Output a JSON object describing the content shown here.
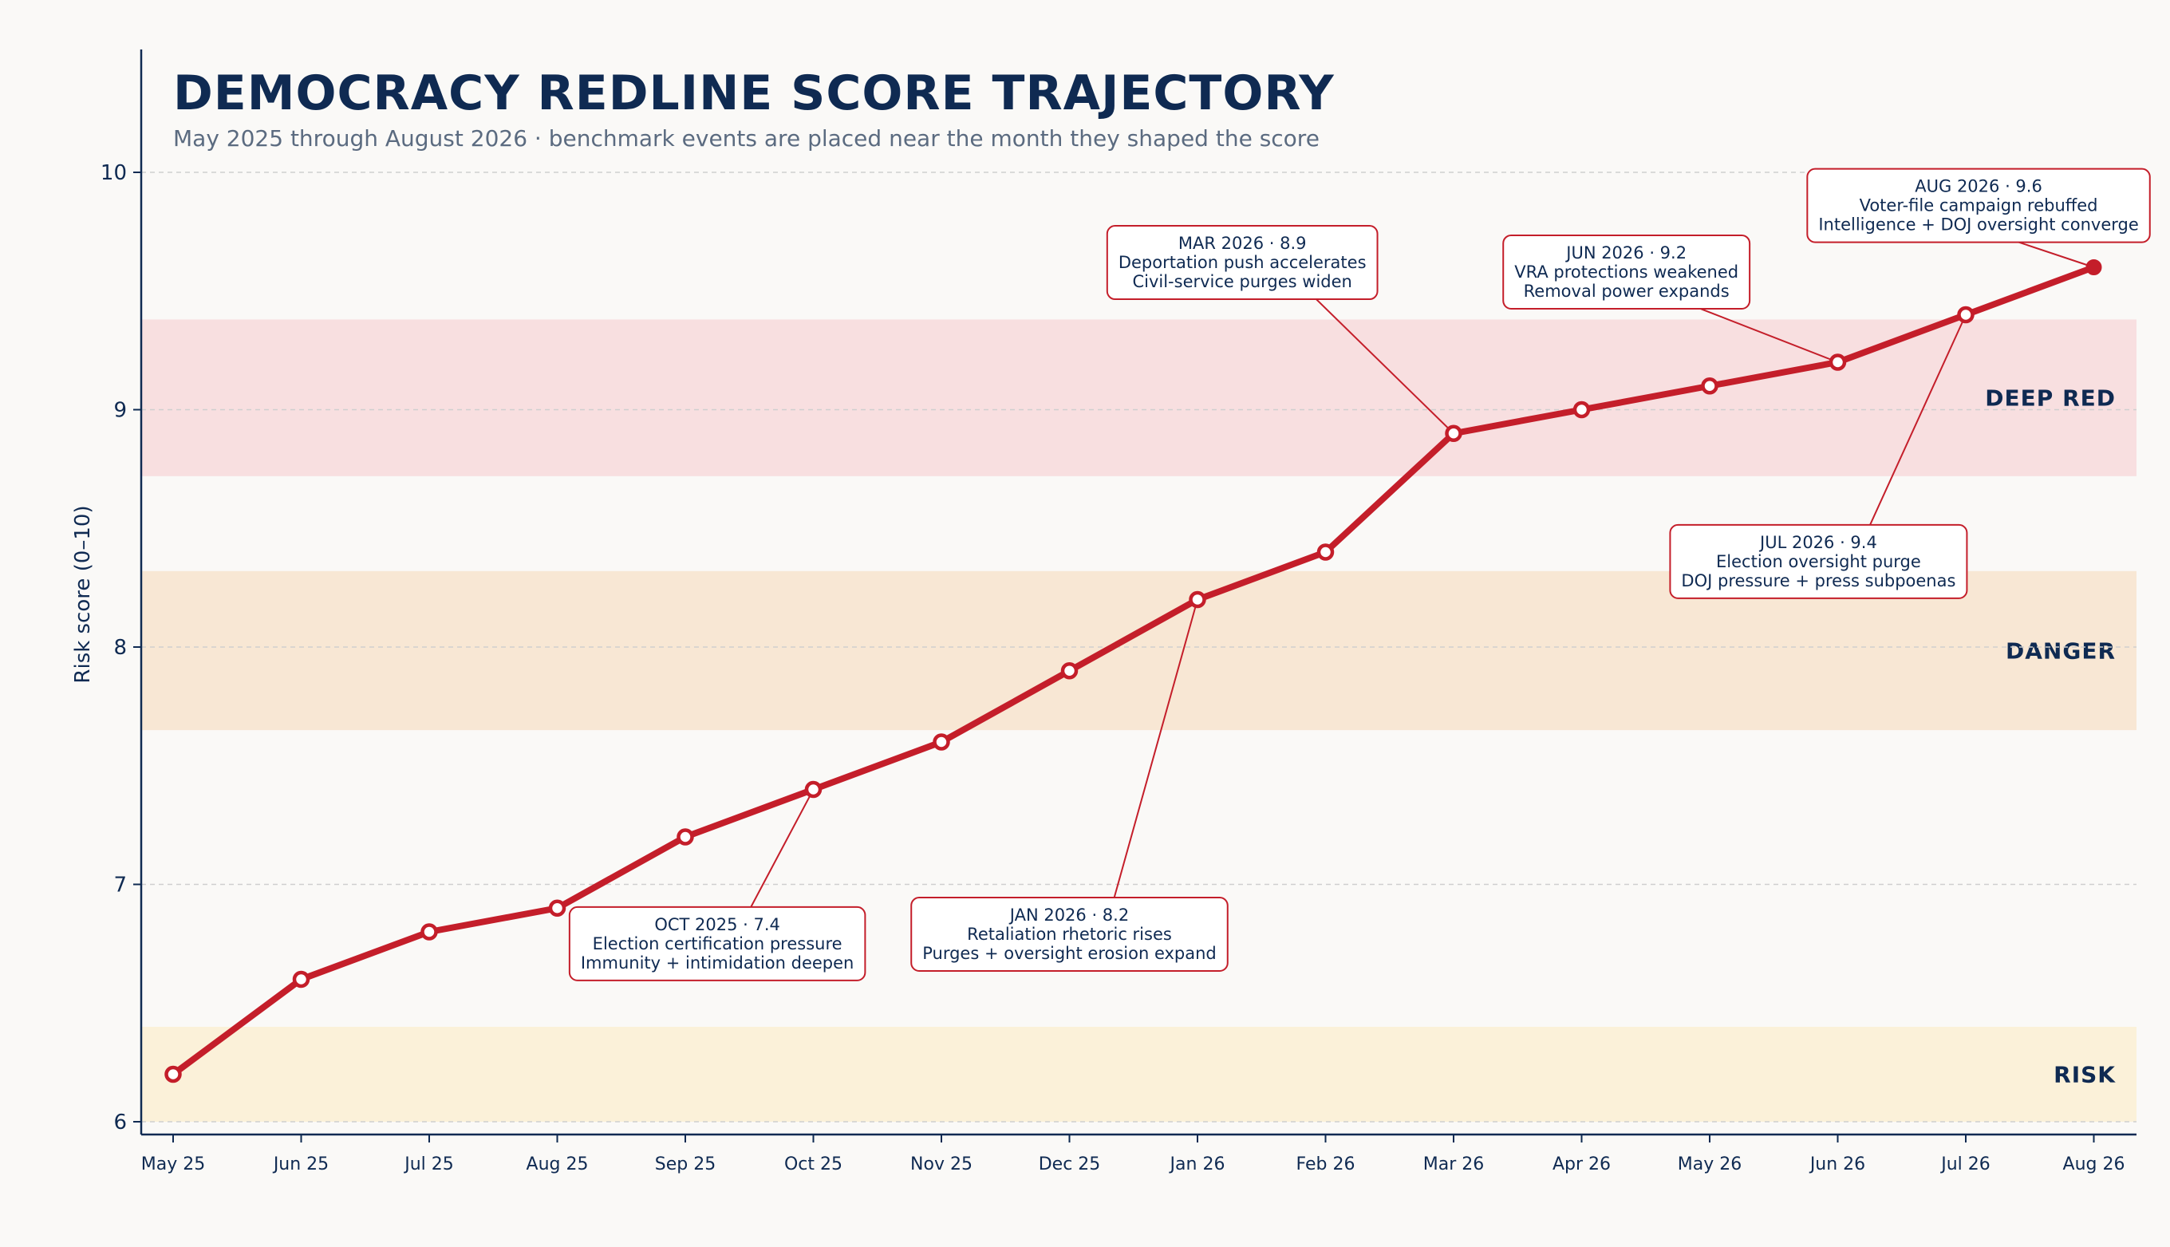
{
  "chart_data": {
    "type": "line",
    "title": "DEMOCRACY REDLINE SCORE TRAJECTORY",
    "subtitle": "May 2025 through August 2026 · benchmark events are placed near the month they shaped the score",
    "xlabel": "",
    "ylabel": "Risk score (0–10)",
    "ylim": [
      5.95,
      10.52
    ],
    "yticks": [
      6,
      7,
      8,
      9,
      10
    ],
    "grid": "horizontal dashed",
    "categories": [
      "May 25",
      "Jun 25",
      "Jul 25",
      "Aug 25",
      "Sep 25",
      "Oct 25",
      "Nov 25",
      "Dec 25",
      "Jan 26",
      "Feb 26",
      "Mar 26",
      "Apr 26",
      "May 26",
      "Jun 26",
      "Jul 26",
      "Aug 26"
    ],
    "series": [
      {
        "values": [
          6.2,
          6.6,
          6.8,
          6.9,
          7.2,
          7.4,
          7.6,
          7.9,
          8.2,
          8.4,
          8.9,
          9.0,
          9.1,
          9.2,
          9.4,
          9.6
        ],
        "color": "#c41e2a"
      }
    ],
    "bands": [
      {
        "label": "RISK",
        "from": 6.0,
        "to": 6.4,
        "color": "#fbf1d9"
      },
      {
        "label": "DANGER",
        "from": 7.65,
        "to": 8.32,
        "color": "#f8e7d4"
      },
      {
        "label": "DEEP RED",
        "from": 8.72,
        "to": 9.38,
        "color": "#f8dfe0"
      }
    ],
    "annotations": [
      {
        "index": 5,
        "lines": [
          "OCT 2025 · 7.4",
          "Election certification pressure",
          "Immunity + intimidation deepen"
        ],
        "box_x": 4.25,
        "box_y": 6.75
      },
      {
        "index": 8,
        "lines": [
          "JAN 2026 · 8.2",
          "Retaliation rhetoric rises",
          "Purges + oversight erosion expand"
        ],
        "box_x": 7.0,
        "box_y": 6.79
      },
      {
        "index": 10,
        "lines": [
          "MAR 2026 · 8.9",
          "Deportation push accelerates",
          "Civil-service purges widen"
        ],
        "box_x": 8.35,
        "box_y": 9.62
      },
      {
        "index": 13,
        "lines": [
          "JUN 2026 · 9.2",
          "VRA protections weakened",
          "Removal power expands"
        ],
        "box_x": 11.35,
        "box_y": 9.58
      },
      {
        "index": 14,
        "lines": [
          "JUL 2026 · 9.4",
          "Election oversight purge",
          "DOJ pressure + press subpoenas"
        ],
        "box_x": 12.85,
        "box_y": 8.36
      },
      {
        "index": 15,
        "lines": [
          "AUG 2026 · 9.6",
          "Voter-file campaign rebuffed",
          "Intelligence + DOJ oversight converge"
        ],
        "box_x": 14.1,
        "box_y": 9.86
      }
    ]
  }
}
